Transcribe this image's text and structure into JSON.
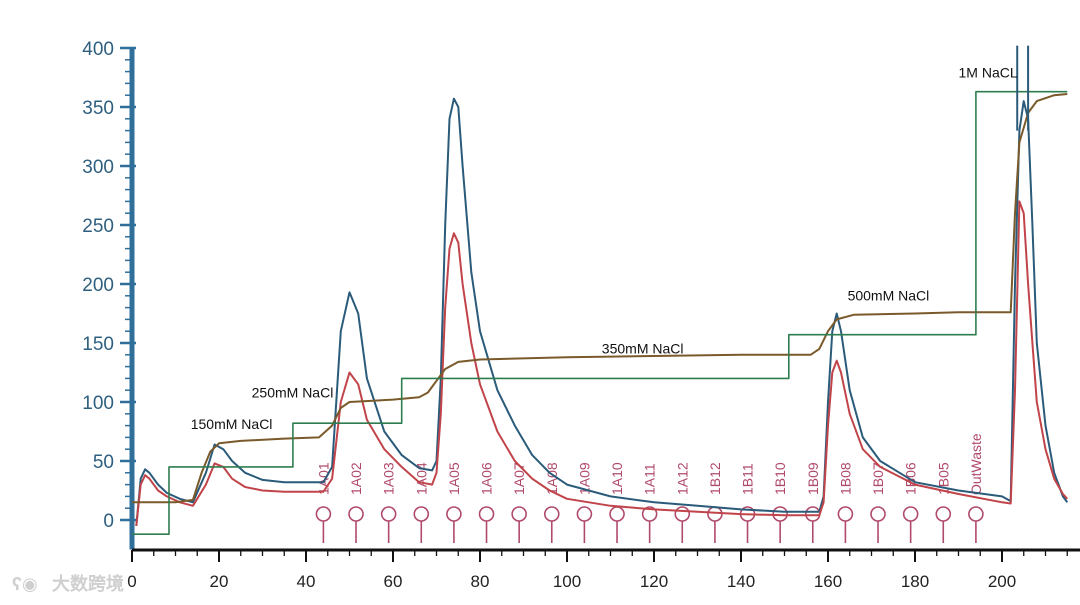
{
  "chart_data": {
    "type": "line",
    "title": "",
    "xlabel": "",
    "ylabel": "",
    "xlim": [
      0,
      215
    ],
    "ylim": [
      -25,
      400
    ],
    "x_ticks": [
      0,
      20,
      40,
      60,
      80,
      100,
      120,
      140,
      160,
      180,
      200
    ],
    "y_ticks": [
      0,
      50,
      100,
      150,
      200,
      250,
      300,
      350,
      400
    ],
    "series": [
      {
        "key": "uv-blue",
        "color": "#2b5b7a",
        "points": [
          [
            1,
            -5
          ],
          [
            2,
            35
          ],
          [
            3,
            43
          ],
          [
            4,
            40
          ],
          [
            6,
            30
          ],
          [
            8,
            23
          ],
          [
            11,
            18
          ],
          [
            14,
            15
          ],
          [
            17,
            40
          ],
          [
            19,
            64
          ],
          [
            21,
            60
          ],
          [
            23,
            50
          ],
          [
            26,
            40
          ],
          [
            30,
            34
          ],
          [
            35,
            32
          ],
          [
            40,
            32
          ],
          [
            44,
            32
          ],
          [
            46,
            45
          ],
          [
            48,
            160
          ],
          [
            50,
            193
          ],
          [
            52,
            175
          ],
          [
            54,
            120
          ],
          [
            58,
            75
          ],
          [
            62,
            55
          ],
          [
            66,
            44
          ],
          [
            69,
            42
          ],
          [
            70,
            50
          ],
          [
            71,
            120
          ],
          [
            72,
            250
          ],
          [
            73,
            340
          ],
          [
            74,
            357
          ],
          [
            75,
            350
          ],
          [
            76,
            300
          ],
          [
            78,
            210
          ],
          [
            80,
            160
          ],
          [
            84,
            110
          ],
          [
            88,
            80
          ],
          [
            92,
            55
          ],
          [
            96,
            40
          ],
          [
            100,
            30
          ],
          [
            110,
            20
          ],
          [
            120,
            15
          ],
          [
            130,
            12
          ],
          [
            140,
            9
          ],
          [
            150,
            7
          ],
          [
            158,
            7
          ],
          [
            159,
            20
          ],
          [
            160,
            100
          ],
          [
            161,
            160
          ],
          [
            162,
            175
          ],
          [
            163,
            160
          ],
          [
            165,
            110
          ],
          [
            168,
            70
          ],
          [
            172,
            50
          ],
          [
            180,
            32
          ],
          [
            190,
            25
          ],
          [
            200,
            20
          ],
          [
            202,
            16
          ],
          [
            203,
            200
          ],
          [
            204,
            330
          ],
          [
            205,
            355
          ],
          [
            206,
            340
          ],
          [
            207,
            250
          ],
          [
            208,
            150
          ],
          [
            210,
            80
          ],
          [
            212,
            40
          ],
          [
            214,
            20
          ],
          [
            215,
            15
          ]
        ]
      },
      {
        "key": "uv-red",
        "color": "#c0444a",
        "points": [
          [
            1,
            -5
          ],
          [
            2,
            30
          ],
          [
            3,
            38
          ],
          [
            4,
            35
          ],
          [
            6,
            25
          ],
          [
            8,
            20
          ],
          [
            11,
            15
          ],
          [
            14,
            12
          ],
          [
            17,
            30
          ],
          [
            19,
            48
          ],
          [
            21,
            45
          ],
          [
            23,
            35
          ],
          [
            26,
            28
          ],
          [
            30,
            25
          ],
          [
            35,
            24
          ],
          [
            40,
            24
          ],
          [
            44,
            24
          ],
          [
            46,
            35
          ],
          [
            48,
            100
          ],
          [
            50,
            125
          ],
          [
            52,
            115
          ],
          [
            54,
            85
          ],
          [
            58,
            60
          ],
          [
            62,
            45
          ],
          [
            66,
            32
          ],
          [
            69,
            30
          ],
          [
            70,
            40
          ],
          [
            71,
            90
          ],
          [
            72,
            180
          ],
          [
            73,
            230
          ],
          [
            74,
            243
          ],
          [
            75,
            235
          ],
          [
            76,
            200
          ],
          [
            78,
            150
          ],
          [
            80,
            115
          ],
          [
            84,
            75
          ],
          [
            88,
            50
          ],
          [
            92,
            35
          ],
          [
            96,
            25
          ],
          [
            100,
            18
          ],
          [
            110,
            12
          ],
          [
            120,
            9
          ],
          [
            130,
            7
          ],
          [
            140,
            5
          ],
          [
            150,
            4
          ],
          [
            158,
            4
          ],
          [
            159,
            15
          ],
          [
            160,
            80
          ],
          [
            161,
            125
          ],
          [
            162,
            135
          ],
          [
            163,
            125
          ],
          [
            165,
            90
          ],
          [
            168,
            60
          ],
          [
            172,
            45
          ],
          [
            180,
            30
          ],
          [
            190,
            22
          ],
          [
            200,
            15
          ],
          [
            202,
            14
          ],
          [
            203,
            110
          ],
          [
            204,
            270
          ],
          [
            205,
            260
          ],
          [
            206,
            200
          ],
          [
            207,
            150
          ],
          [
            208,
            100
          ],
          [
            210,
            60
          ],
          [
            212,
            35
          ],
          [
            214,
            22
          ],
          [
            215,
            18
          ]
        ]
      },
      {
        "key": "conductivity",
        "color": "#7a5a2a",
        "points": [
          [
            0,
            15
          ],
          [
            10,
            15
          ],
          [
            14,
            17
          ],
          [
            16,
            40
          ],
          [
            18,
            58
          ],
          [
            20,
            65
          ],
          [
            25,
            67
          ],
          [
            35,
            69
          ],
          [
            43,
            70
          ],
          [
            46,
            80
          ],
          [
            48,
            95
          ],
          [
            50,
            100
          ],
          [
            60,
            102
          ],
          [
            66,
            104
          ],
          [
            68,
            108
          ],
          [
            70,
            118
          ],
          [
            72,
            128
          ],
          [
            75,
            134
          ],
          [
            80,
            136
          ],
          [
            100,
            138
          ],
          [
            120,
            139
          ],
          [
            140,
            140
          ],
          [
            156,
            140
          ],
          [
            158,
            145
          ],
          [
            160,
            160
          ],
          [
            162,
            170
          ],
          [
            166,
            174
          ],
          [
            180,
            175
          ],
          [
            190,
            176
          ],
          [
            202,
            176
          ],
          [
            203,
            260
          ],
          [
            204,
            320
          ],
          [
            206,
            345
          ],
          [
            208,
            355
          ],
          [
            212,
            360
          ],
          [
            215,
            361
          ]
        ]
      },
      {
        "key": "gradient",
        "color": "#2e7d4f",
        "points": [
          [
            0,
            -12
          ],
          [
            8.5,
            -12
          ],
          [
            8.5,
            45
          ],
          [
            37,
            45
          ],
          [
            37,
            82
          ],
          [
            62,
            82
          ],
          [
            62,
            120
          ],
          [
            151,
            120
          ],
          [
            151,
            157
          ],
          [
            194,
            157
          ],
          [
            194,
            363
          ],
          [
            215,
            363
          ]
        ]
      }
    ],
    "vertical_markers": [
      [
        203.5,
        330,
        402
      ],
      [
        206,
        330,
        402
      ]
    ],
    "annotations": [
      {
        "text": "150mM NaCl",
        "x": 13.5,
        "y": 77
      },
      {
        "text": "250mM NaCl",
        "x": 27.5,
        "y": 104
      },
      {
        "text": "350mM NaCl",
        "x": 108,
        "y": 141
      },
      {
        "text": "500mM NaCl",
        "x": 164.5,
        "y": 186
      },
      {
        "text": "1M NaCL",
        "x": 190,
        "y": 375
      }
    ],
    "fraction_markers": [
      {
        "label": "1A01",
        "x": 44
      },
      {
        "label": "1A02",
        "x": 51.5
      },
      {
        "label": "1A03",
        "x": 59
      },
      {
        "label": "1A04",
        "x": 66.5
      },
      {
        "label": "1A05",
        "x": 74
      },
      {
        "label": "1A06",
        "x": 81.5
      },
      {
        "label": "1A07",
        "x": 89
      },
      {
        "label": "1A08",
        "x": 96.5
      },
      {
        "label": "1A09",
        "x": 104
      },
      {
        "label": "1A10",
        "x": 111.5
      },
      {
        "label": "1A11",
        "x": 119
      },
      {
        "label": "1A12",
        "x": 126.5
      },
      {
        "label": "1B12",
        "x": 134
      },
      {
        "label": "1B11",
        "x": 141.5
      },
      {
        "label": "1B10",
        "x": 149
      },
      {
        "label": "1B09",
        "x": 156.5
      },
      {
        "label": "1B08",
        "x": 164
      },
      {
        "label": "1B07",
        "x": 171.5
      },
      {
        "label": "1B06",
        "x": 179
      },
      {
        "label": "1B05",
        "x": 186.5
      },
      {
        "label": "OutWaste",
        "x": 194
      }
    ],
    "grid": false,
    "legend": "none"
  },
  "watermark": "大数跨境"
}
